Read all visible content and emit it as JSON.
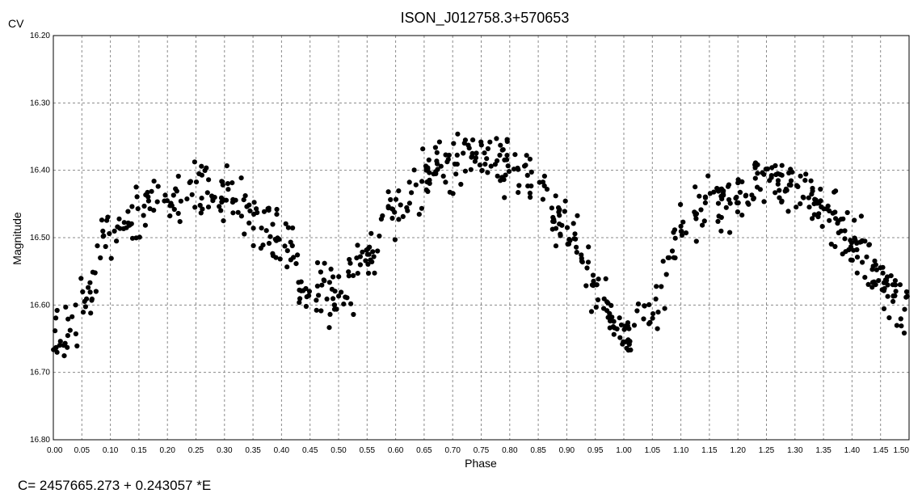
{
  "chart_data": {
    "type": "scatter",
    "title": "ISON_J012758.3+570653",
    "band_label": "CV",
    "xlabel": "Phase",
    "ylabel": "Magnitude",
    "ephemeris": "C= 2457665.273 + 0.243057 *E",
    "xlim": [
      0.0,
      1.5
    ],
    "ylim": [
      16.2,
      16.8
    ],
    "y_inverted": true,
    "grid": true,
    "point_color": "#000000",
    "x_ticks": [
      "0.00",
      "0.05",
      "0.10",
      "0.15",
      "0.20",
      "0.25",
      "0.30",
      "0.35",
      "0.40",
      "0.45",
      "0.50",
      "0.55",
      "0.60",
      "0.65",
      "0.70",
      "0.75",
      "0.80",
      "0.85",
      "0.90",
      "0.95",
      "1.00",
      "1.05",
      "1.10",
      "1.15",
      "1.20",
      "1.25",
      "1.30",
      "1.35",
      "1.40",
      "1.45",
      "1.50"
    ],
    "y_ticks": [
      "16.20",
      "16.30",
      "16.40",
      "16.50",
      "16.60",
      "16.70",
      "16.80"
    ],
    "light_curve_model": {
      "description_points_phase_magnitude": [
        [
          0.0,
          16.655
        ],
        [
          0.05,
          16.605
        ],
        [
          0.1,
          16.5
        ],
        [
          0.15,
          16.455
        ],
        [
          0.2,
          16.44
        ],
        [
          0.25,
          16.42
        ],
        [
          0.3,
          16.43
        ],
        [
          0.35,
          16.46
        ],
        [
          0.4,
          16.51
        ],
        [
          0.45,
          16.57
        ],
        [
          0.5,
          16.59
        ],
        [
          0.55,
          16.53
        ],
        [
          0.6,
          16.45
        ],
        [
          0.65,
          16.41
        ],
        [
          0.7,
          16.385
        ],
        [
          0.75,
          16.375
        ],
        [
          0.8,
          16.39
        ],
        [
          0.85,
          16.42
        ],
        [
          0.9,
          16.49
        ],
        [
          0.95,
          16.57
        ],
        [
          1.0,
          16.64
        ],
        [
          1.05,
          16.605
        ],
        [
          1.1,
          16.5
        ],
        [
          1.15,
          16.455
        ],
        [
          1.2,
          16.44
        ],
        [
          1.25,
          16.42
        ],
        [
          1.3,
          16.43
        ],
        [
          1.35,
          16.46
        ],
        [
          1.4,
          16.51
        ],
        [
          1.45,
          16.56
        ],
        [
          1.5,
          16.61
        ]
      ],
      "scatter_mag": 0.028,
      "points_per_0.05_phase": 24
    }
  }
}
